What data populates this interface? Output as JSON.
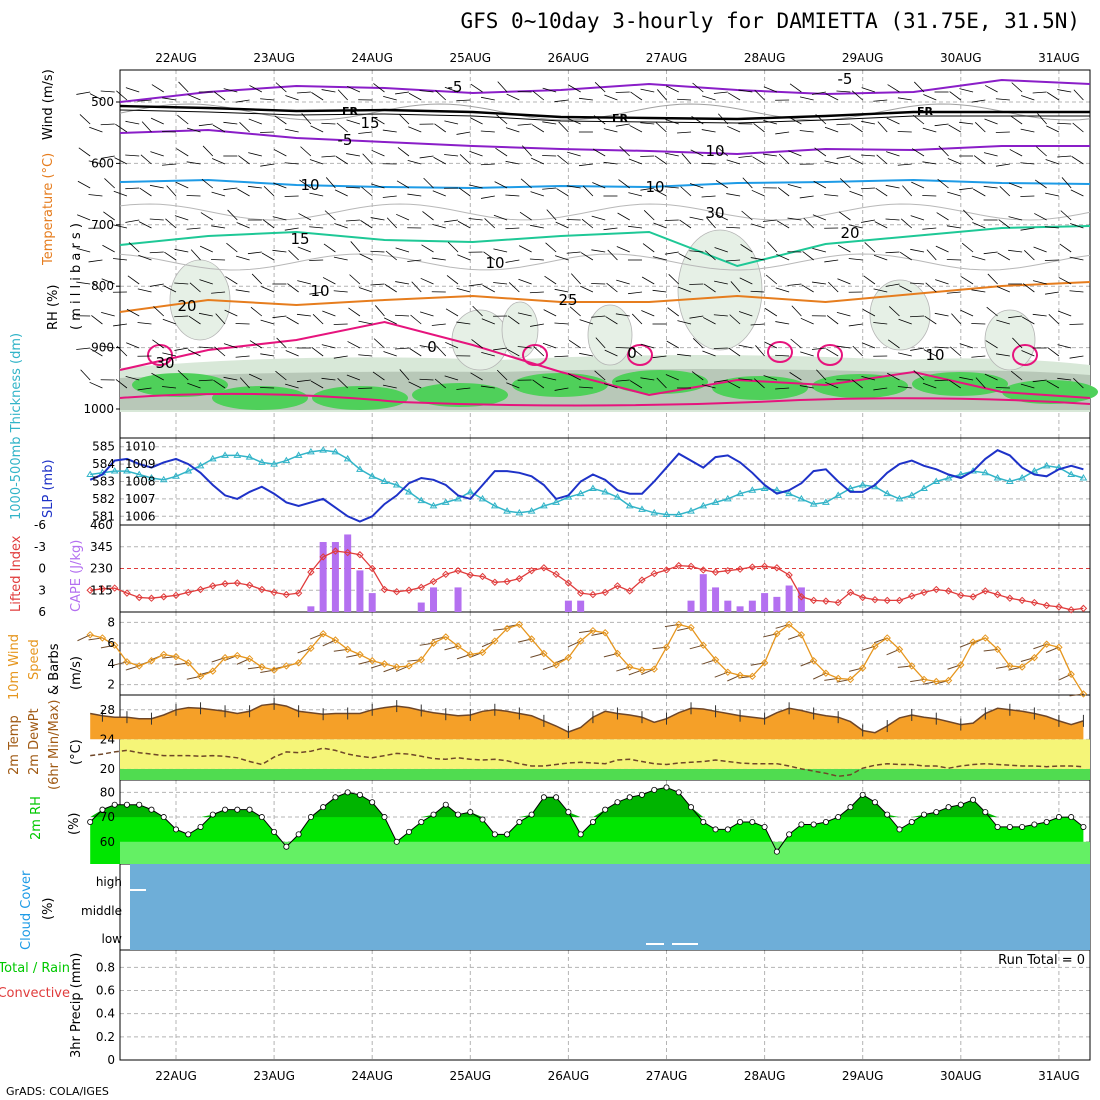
{
  "title": "GFS 0~10day 3-hourly for DAMIETTA (31.75E, 31.5N)",
  "credit": "GrADS: COLA/IGES",
  "date_labels": [
    "22AUG",
    "23AUG",
    "24AUG",
    "25AUG",
    "26AUG",
    "27AUG",
    "28AUG",
    "29AUG",
    "30AUG",
    "31AUG"
  ],
  "colors": {
    "purple": "#8a1ec8",
    "blue": "#1e9be6",
    "teal": "#1ec896",
    "orange": "#e67d1e",
    "magenta": "#e6147d",
    "rh_green": "#4fd05a",
    "slp": "#1e32c8",
    "thick": "#32b4c8",
    "li": "#e03c3c",
    "cape": "#b470f0",
    "wind": "#e6961e",
    "temp": "#f5a028",
    "cloud": "#6eaed8",
    "rh2": "#00c800"
  },
  "panels": {
    "upper": {
      "ylabels": {
        "rh": "RH (%)",
        "temp": "Temperature (°C)",
        "wind": "Wind (m/s)",
        "pres": "( m i l l i b a r s )"
      },
      "yticks": [
        "500",
        "600",
        "700",
        "800",
        "900",
        "1000"
      ],
      "contour_labels": [
        "-5",
        "-5",
        "FR",
        "FR",
        "FR",
        "-5",
        "10",
        "10",
        "10",
        "15",
        "15",
        "20",
        "20",
        "25",
        "0",
        "0",
        "10",
        "10",
        "10",
        "30",
        "30"
      ]
    },
    "thickness": {
      "ylabel_left": "1000-500mb Thickness (dm)",
      "ylabel_right": "SLP (mb)",
      "left_ticks": [
        "585",
        "584",
        "583",
        "582",
        "581"
      ],
      "right_ticks": [
        "1010",
        "1009",
        "1008",
        "1007",
        "1006"
      ]
    },
    "cape": {
      "ylabel_left": "Lifted Index",
      "ylabel_right": "CAPE (J/kg)",
      "left_ticks": [
        "-6",
        "-3",
        "0",
        "3",
        "6"
      ],
      "right_ticks": [
        "460",
        "345",
        "230",
        "115"
      ]
    },
    "wind10": {
      "ylabel1": "10m Wind",
      "ylabel2": "Speed",
      "ylabel3": "& Barbs",
      "ylabel4": "(m/s)",
      "ticks": [
        "8",
        "6",
        "4",
        "2"
      ]
    },
    "temp2m": {
      "ylabel1": "2m Temp",
      "ylabel2": "2m DewPt",
      "ylabel3": "(6hr Min/Max)",
      "ylabel4": "(°C)",
      "ticks": [
        "28",
        "24",
        "20"
      ]
    },
    "rh2m": {
      "ylabel1": "2m RH",
      "ylabel2": "(%)",
      "ticks": [
        "80",
        "70",
        "60"
      ]
    },
    "cloud": {
      "ylabel1": "Cloud Cover",
      "ylabel2": "(%)",
      "ticks": [
        "high",
        "middle",
        "low"
      ]
    },
    "precip": {
      "ylabel1": "Total / Rain",
      "ylabel2": "Convective",
      "ylabel3": "3hr Precip (mm)",
      "ticks": [
        "0.8",
        "0.6",
        "0.4",
        "0.2",
        "0"
      ],
      "run_total": "Run Total = 0"
    }
  },
  "chart_data": [
    {
      "type": "line",
      "name": "1000-500mb Thickness (dm)",
      "ylim": [
        580.5,
        585.5
      ],
      "values": [
        583.4,
        583.5,
        583.6,
        583.6,
        583.4,
        583.2,
        583.1,
        583.3,
        583.6,
        583.9,
        584.3,
        584.5,
        584.5,
        584.4,
        584.1,
        584.0,
        584.2,
        584.5,
        584.7,
        584.8,
        584.7,
        584.3,
        583.7,
        583.3,
        583.0,
        582.8,
        582.4,
        581.9,
        581.6,
        581.8,
        582.0,
        582.4,
        582.0,
        581.6,
        581.3,
        581.2,
        581.3,
        581.6,
        581.8,
        582.1,
        582.3,
        582.6,
        582.4,
        582.1,
        581.6,
        581.4,
        581.2,
        581.1,
        581.1,
        581.3,
        581.6,
        581.8,
        582.0,
        582.3,
        582.5,
        582.6,
        582.5,
        582.3,
        582.0,
        581.7,
        581.8,
        582.2,
        582.6,
        582.8,
        582.7,
        582.3,
        582.0,
        582.2,
        582.6,
        583.0,
        583.2,
        583.4,
        583.6,
        583.5,
        583.2,
        583.0,
        583.2,
        583.6,
        583.9,
        583.8,
        583.4,
        583.2
      ]
    },
    {
      "type": "line",
      "name": "SLP (mb)",
      "ylim": [
        1005.5,
        1010.5
      ],
      "values": [
        1008.1,
        1008.4,
        1009.2,
        1009.3,
        1009.0,
        1008.8,
        1009.1,
        1009.3,
        1009.0,
        1008.5,
        1007.8,
        1007.2,
        1007.0,
        1007.4,
        1007.7,
        1007.3,
        1006.8,
        1006.6,
        1006.8,
        1007.0,
        1006.5,
        1006.0,
        1005.7,
        1006.0,
        1006.7,
        1007.2,
        1007.9,
        1008.2,
        1008.1,
        1007.8,
        1007.2,
        1007.0,
        1007.8,
        1008.6,
        1008.6,
        1008.5,
        1008.3,
        1007.8,
        1007.0,
        1007.2,
        1008.0,
        1008.4,
        1008.1,
        1007.5,
        1007.3,
        1007.3,
        1008.0,
        1008.8,
        1009.6,
        1009.2,
        1008.8,
        1009.4,
        1009.5,
        1009.1,
        1008.5,
        1007.8,
        1007.3,
        1007.5,
        1007.9,
        1008.6,
        1008.7,
        1008.0,
        1007.4,
        1007.4,
        1007.8,
        1008.5,
        1009.0,
        1009.2,
        1008.9,
        1008.7,
        1008.4,
        1008.2,
        1008.6,
        1009.3,
        1009.8,
        1009.5,
        1008.8,
        1008.4,
        1008.3,
        1008.7,
        1008.9,
        1008.7
      ]
    },
    {
      "type": "line",
      "name": "Lifted Index",
      "ylim": [
        6,
        -6
      ],
      "values": [
        3.0,
        2.8,
        2.7,
        3.4,
        4.0,
        4.1,
        3.9,
        3.7,
        3.3,
        2.9,
        2.4,
        2.1,
        2.0,
        2.3,
        2.9,
        3.3,
        3.6,
        3.4,
        0.5,
        -1.6,
        -2.4,
        -2.2,
        -1.9,
        0.0,
        2.9,
        3.2,
        3.0,
        2.6,
        1.8,
        0.8,
        0.3,
        0.9,
        1.1,
        1.9,
        1.8,
        1.4,
        0.3,
        -0.1,
        0.8,
        2.0,
        3.4,
        3.6,
        3.3,
        2.4,
        3.1,
        1.6,
        0.7,
        0.2,
        -0.4,
        -0.3,
        0.2,
        0.5,
        0.3,
        0.1,
        -0.2,
        -0.3,
        -0.1,
        0.9,
        3.9,
        4.4,
        4.5,
        4.7,
        3.3,
        4.0,
        4.3,
        4.4,
        4.4,
        3.8,
        3.3,
        2.9,
        3.1,
        3.7,
        3.9,
        3.1,
        3.6,
        4.1,
        4.4,
        4.7,
        5.1,
        5.3,
        5.7,
        5.5
      ]
    },
    {
      "type": "bar",
      "name": "CAPE (J/kg)",
      "ylim": [
        0,
        460
      ],
      "values": [
        0,
        0,
        0,
        0,
        0,
        0,
        0,
        0,
        0,
        0,
        0,
        0,
        0,
        0,
        0,
        0,
        0,
        0,
        30,
        370,
        370,
        410,
        220,
        100,
        0,
        0,
        0,
        50,
        130,
        0,
        130,
        0,
        0,
        0,
        0,
        0,
        0,
        0,
        0,
        60,
        60,
        0,
        0,
        0,
        0,
        0,
        0,
        0,
        0,
        60,
        200,
        130,
        60,
        30,
        60,
        100,
        80,
        140,
        130,
        0,
        0,
        0,
        0,
        0,
        0,
        0,
        0,
        0,
        0,
        0,
        0,
        0,
        0,
        0,
        0,
        0,
        0,
        0,
        0,
        0,
        0,
        0
      ]
    },
    {
      "type": "line",
      "name": "10m Wind Speed (m/s)",
      "ylim": [
        1,
        9
      ],
      "values": [
        6.8,
        6.5,
        5.8,
        4.2,
        3.8,
        4.3,
        4.9,
        4.7,
        4.1,
        2.8,
        3.3,
        4.6,
        4.8,
        4.5,
        3.7,
        3.4,
        3.8,
        4.1,
        5.5,
        6.9,
        6.3,
        5.4,
        4.9,
        4.3,
        4.0,
        3.7,
        3.8,
        4.4,
        6.0,
        6.6,
        5.7,
        4.9,
        5.1,
        6.2,
        7.4,
        7.8,
        6.4,
        5.0,
        3.9,
        4.6,
        6.2,
        7.2,
        7.0,
        5.0,
        3.7,
        3.4,
        3.5,
        5.6,
        7.8,
        7.5,
        5.8,
        4.4,
        3.2,
        2.9,
        2.8,
        4.1,
        6.9,
        7.8,
        6.8,
        4.3,
        3.1,
        2.6,
        2.5,
        3.6,
        5.7,
        6.5,
        5.4,
        3.8,
        2.5,
        2.3,
        2.4,
        3.9,
        6.1,
        6.5,
        5.4,
        3.8,
        3.7,
        4.6,
        5.9,
        5.6,
        3.0,
        1.1
      ]
    },
    {
      "type": "area",
      "name": "2m Temp (°C)",
      "ylim": [
        18.5,
        30
      ],
      "values": [
        27.5,
        27.2,
        27.0,
        27.0,
        26.8,
        26.8,
        27.3,
        28.0,
        28.3,
        28.2,
        28.0,
        27.8,
        27.5,
        27.8,
        28.6,
        28.8,
        28.5,
        27.8,
        27.6,
        27.4,
        27.5,
        27.5,
        27.5,
        28.0,
        28.3,
        28.5,
        28.3,
        27.9,
        27.6,
        27.4,
        27.2,
        27.3,
        27.8,
        28.0,
        27.8,
        27.5,
        27.2,
        26.5,
        25.8,
        25.0,
        25.6,
        27.0,
        27.8,
        27.5,
        27.3,
        27.0,
        26.3,
        26.8,
        27.6,
        28.2,
        28.1,
        27.8,
        27.5,
        27.2,
        27.0,
        26.8,
        27.6,
        28.2,
        27.9,
        27.5,
        27.2,
        27.0,
        26.4,
        25.2,
        24.9,
        25.8,
        26.9,
        27.3,
        27.0,
        26.8,
        26.4,
        26.0,
        26.2,
        27.5,
        28.2,
        28.0,
        27.8,
        27.5,
        27.1,
        26.5,
        26.0,
        26.5
      ]
    },
    {
      "type": "line",
      "name": "2m DewPt (°C)",
      "ylim": [
        18.5,
        30
      ],
      "values": [
        21.8,
        22.0,
        22.3,
        22.5,
        22.2,
        22.0,
        21.8,
        21.8,
        21.8,
        21.7,
        21.8,
        21.7,
        21.5,
        21.0,
        20.6,
        21.6,
        22.3,
        22.2,
        22.4,
        22.8,
        22.5,
        22.0,
        21.7,
        21.5,
        21.8,
        22.1,
        22.0,
        21.7,
        21.4,
        21.3,
        21.5,
        21.3,
        21.2,
        21.3,
        21.1,
        20.7,
        20.4,
        20.4,
        20.6,
        20.8,
        20.9,
        20.8,
        20.7,
        21.2,
        21.3,
        21.0,
        20.7,
        20.6,
        20.8,
        20.9,
        21.0,
        21.2,
        21.0,
        20.8,
        20.7,
        20.7,
        20.7,
        20.4,
        20.0,
        19.7,
        19.4,
        19.0,
        19.2,
        20.1,
        20.5,
        20.7,
        20.6,
        20.6,
        20.4,
        20.4,
        20.1,
        20.4,
        20.6,
        20.7,
        20.6,
        20.5,
        20.4,
        20.4,
        20.3,
        20.4,
        20.4,
        20.3
      ]
    },
    {
      "type": "area",
      "name": "2m RH (%)",
      "ylim": [
        51,
        85
      ],
      "values": [
        68,
        73,
        75,
        75,
        75,
        73,
        70,
        65,
        63,
        66,
        71,
        73,
        73,
        73,
        70,
        64,
        58,
        63,
        70,
        74,
        78,
        80,
        79,
        76,
        70,
        60,
        64,
        68,
        71,
        75,
        71,
        72,
        69,
        63,
        63,
        68,
        71,
        78,
        78,
        72,
        63,
        68,
        73,
        76,
        78,
        79,
        81,
        82,
        80,
        74,
        68,
        65,
        65,
        68,
        68,
        66,
        56,
        63,
        67,
        67,
        68,
        70,
        74,
        79,
        76,
        71,
        65,
        68,
        71,
        72,
        74,
        75,
        77,
        72,
        66,
        66,
        66,
        67,
        68,
        70,
        70,
        66
      ]
    }
  ]
}
